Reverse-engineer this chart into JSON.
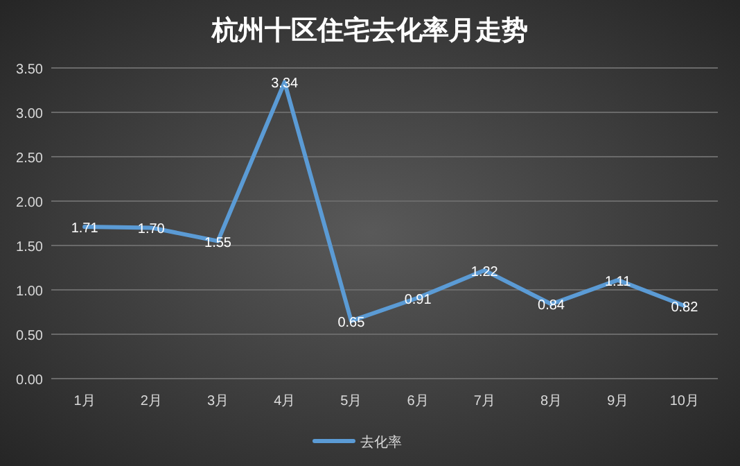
{
  "chart_data": {
    "type": "line",
    "title": "杭州十区住宅去化率月走势",
    "categories": [
      "1月",
      "2月",
      "3月",
      "4月",
      "5月",
      "6月",
      "7月",
      "8月",
      "9月",
      "10月"
    ],
    "series": [
      {
        "name": "去化率",
        "color": "#5b9bd5",
        "values": [
          1.71,
          1.7,
          1.55,
          3.34,
          0.65,
          0.91,
          1.22,
          0.84,
          1.11,
          0.82
        ],
        "value_labels": [
          "1.71",
          "1.70",
          "1.55",
          "3.34",
          "0.65",
          "0.91",
          "1.22",
          "0.84",
          "1.11",
          "0.82"
        ]
      }
    ],
    "ylim": [
      0,
      3.5
    ],
    "yticks": [
      {
        "value": 0,
        "label": "0.00"
      },
      {
        "value": 0.5,
        "label": "0.50"
      },
      {
        "value": 1,
        "label": "1.00"
      },
      {
        "value": 1.5,
        "label": "1.50"
      },
      {
        "value": 2,
        "label": "2.00"
      },
      {
        "value": 2.5,
        "label": "2.50"
      },
      {
        "value": 3,
        "label": "3.00"
      },
      {
        "value": 3.5,
        "label": "3.50"
      }
    ],
    "grid": "y",
    "legend": "bottom"
  }
}
